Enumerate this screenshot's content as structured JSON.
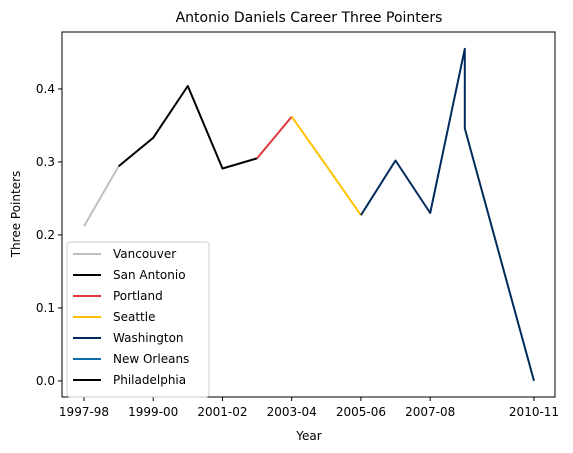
{
  "chart_data": {
    "type": "line",
    "title": "Antonio Daniels Career Three Pointers",
    "xlabel": "Year",
    "ylabel": "Three Pointers",
    "x_ticks": [
      "1997-98",
      "1999-00",
      "2001-02",
      "2003-04",
      "2005-06",
      "2007-08",
      "2010-11"
    ],
    "y_ticks": [
      0.0,
      0.1,
      0.2,
      0.3,
      0.4
    ],
    "ylim": [
      -0.022,
      0.478
    ],
    "grid": false,
    "legend_position": "lower-left",
    "series": [
      {
        "name": "Vancouver",
        "color": "#c0c0c0",
        "points": [
          {
            "x": "1997-98",
            "y": 0.212
          },
          {
            "x": "1998-99",
            "y": 0.294
          }
        ]
      },
      {
        "name": "San Antonio",
        "color": "#000000",
        "points": [
          {
            "x": "1998-99",
            "y": 0.294
          },
          {
            "x": "1999-00",
            "y": 0.333
          },
          {
            "x": "2000-01",
            "y": 0.404
          },
          {
            "x": "2001-02",
            "y": 0.291
          },
          {
            "x": "2002-03",
            "y": 0.305
          }
        ]
      },
      {
        "name": "Portland",
        "color": "#e03a3e",
        "points": [
          {
            "x": "2002-03",
            "y": 0.305
          },
          {
            "x": "2003-04",
            "y": 0.362
          }
        ]
      },
      {
        "name": "Seattle",
        "color": "#ffc200",
        "points": [
          {
            "x": "2003-04",
            "y": 0.362
          },
          {
            "x": "2004-05",
            "y": 0.295
          },
          {
            "x": "2005-06",
            "y": 0.227
          }
        ]
      },
      {
        "name": "Washington",
        "color": "#002b5c",
        "points": [
          {
            "x": "2005-06",
            "y": 0.227
          },
          {
            "x": "2006-07",
            "y": 0.302
          },
          {
            "x": "2007-08",
            "y": 0.23
          },
          {
            "x": "2008-09",
            "y": 0.455
          },
          {
            "x": "2008-09",
            "y": 0.346
          },
          {
            "x": "2010-11",
            "y": 0.0
          }
        ]
      },
      {
        "name": "New Orleans",
        "color": "#0c6ca8",
        "points": [
          {
            "x": "2008-09",
            "y": 0.346
          }
        ]
      },
      {
        "name": "Philadelphia",
        "color": "#000000",
        "points": [
          {
            "x": "2010-11",
            "y": 0.0
          }
        ]
      }
    ],
    "x_sequence": [
      "1997-98",
      "1998-99",
      "1999-00",
      "2000-01",
      "2001-02",
      "2002-03",
      "2003-04",
      "2004-05",
      "2005-06",
      "2006-07",
      "2007-08",
      "2008-09",
      "2009-10",
      "2010-11"
    ]
  }
}
